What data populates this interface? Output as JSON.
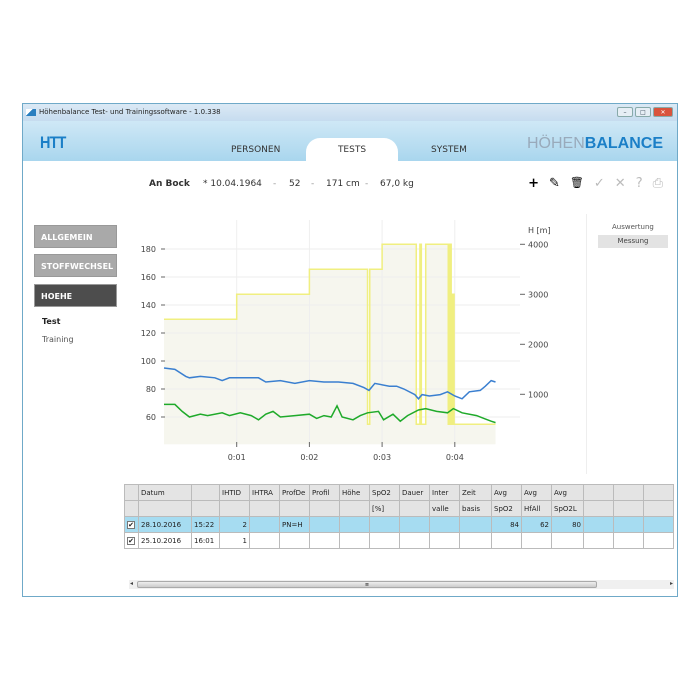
{
  "window": {
    "title": "Höhenbalance Test- und Trainingssoftware - 1.0.338",
    "min": "–",
    "max": "□",
    "close": "✕"
  },
  "header": {
    "logo": "HTT",
    "tabs": [
      "PERSONEN",
      "TESTS",
      "SYSTEM"
    ],
    "active_tab": "TESTS",
    "brand_light": "HÖHEN",
    "brand_bold": "BALANCE"
  },
  "person": {
    "name": "An Bock",
    "birth": "* 10.04.1964",
    "age": "52",
    "height": "171 cm",
    "weight": "67,0 kg",
    "sep": "-"
  },
  "toolbar": {
    "add": "+",
    "edit": "✎",
    "delete": "🗑",
    "confirm": "✓",
    "cancel": "✕",
    "help": "?",
    "print": "⎙"
  },
  "sidebar": {
    "items": [
      "ALLGEMEIN",
      "STOFFWECHSEL",
      "HOEHE"
    ],
    "active": "HOEHE",
    "sub": [
      "Test",
      "Training"
    ]
  },
  "right_panel": {
    "label": "Auswertung",
    "button": "Messung"
  },
  "chart_data": {
    "type": "line",
    "y_left": {
      "ticks": [
        60,
        80,
        100,
        120,
        140,
        160,
        180
      ],
      "range": [
        45,
        200
      ]
    },
    "y_right": {
      "label": "H [m]",
      "ticks": [
        1000,
        2000,
        3000,
        4000
      ],
      "range": [
        0,
        4500
      ]
    },
    "x": {
      "tick_labels": [
        "0:01",
        "0:02",
        "0:03",
        "0:04"
      ],
      "ticks": [
        1,
        2,
        3,
        4
      ],
      "range": [
        0,
        4.9
      ]
    },
    "grid": true,
    "series": [
      {
        "axis": "right",
        "color": "#f0ef80",
        "points": [
          [
            0,
            2500
          ],
          [
            1,
            2500
          ],
          [
            1,
            3000
          ],
          [
            2,
            3000
          ],
          [
            2,
            3500
          ],
          [
            2.8,
            3500
          ],
          [
            2.8,
            400
          ],
          [
            2.83,
            400
          ],
          [
            2.83,
            3500
          ],
          [
            3,
            3500
          ],
          [
            3,
            4000
          ],
          [
            3.47,
            4000
          ],
          [
            3.47,
            400
          ],
          [
            3.52,
            400
          ],
          [
            3.52,
            4000
          ],
          [
            3.54,
            4000
          ],
          [
            3.54,
            400
          ],
          [
            3.6,
            400
          ],
          [
            3.6,
            4000
          ],
          [
            3.91,
            4000
          ],
          [
            3.91,
            400
          ],
          [
            3.93,
            400
          ],
          [
            3.93,
            4000
          ],
          [
            3.95,
            4000
          ],
          [
            3.95,
            400
          ],
          [
            3.97,
            400
          ],
          [
            3.97,
            3000
          ],
          [
            3.99,
            3000
          ],
          [
            3.99,
            400
          ],
          [
            4.56,
            400
          ]
        ]
      },
      {
        "axis": "left",
        "color": "#3a7fd0",
        "points": [
          [
            0,
            95
          ],
          [
            0.15,
            94
          ],
          [
            0.3,
            89
          ],
          [
            0.35,
            88
          ],
          [
            0.5,
            89
          ],
          [
            0.7,
            88
          ],
          [
            0.8,
            86
          ],
          [
            0.9,
            88
          ],
          [
            1.1,
            88
          ],
          [
            1.3,
            88
          ],
          [
            1.4,
            85
          ],
          [
            1.6,
            86
          ],
          [
            1.8,
            84
          ],
          [
            2,
            86
          ],
          [
            2.2,
            85
          ],
          [
            2.4,
            85
          ],
          [
            2.6,
            84
          ],
          [
            2.75,
            81
          ],
          [
            2.82,
            79
          ],
          [
            2.9,
            84
          ],
          [
            3.1,
            82
          ],
          [
            3.2,
            82
          ],
          [
            3.3,
            80
          ],
          [
            3.45,
            76
          ],
          [
            3.5,
            73
          ],
          [
            3.55,
            76
          ],
          [
            3.65,
            75
          ],
          [
            3.8,
            76
          ],
          [
            3.9,
            78
          ],
          [
            4,
            75
          ],
          [
            4.1,
            73
          ],
          [
            4.2,
            78
          ],
          [
            4.35,
            79
          ],
          [
            4.42,
            82
          ],
          [
            4.5,
            86
          ],
          [
            4.56,
            85
          ]
        ]
      },
      {
        "axis": "left",
        "color": "#1faa2a",
        "points": [
          [
            0,
            69
          ],
          [
            0.15,
            69
          ],
          [
            0.25,
            64
          ],
          [
            0.35,
            60
          ],
          [
            0.5,
            62
          ],
          [
            0.6,
            61
          ],
          [
            0.8,
            63
          ],
          [
            0.9,
            61
          ],
          [
            1.05,
            63
          ],
          [
            1.2,
            61
          ],
          [
            1.3,
            58
          ],
          [
            1.4,
            62
          ],
          [
            1.5,
            64
          ],
          [
            1.6,
            60
          ],
          [
            1.8,
            61
          ],
          [
            2,
            62
          ],
          [
            2.1,
            59
          ],
          [
            2.2,
            61
          ],
          [
            2.3,
            60
          ],
          [
            2.38,
            68
          ],
          [
            2.45,
            60
          ],
          [
            2.6,
            58
          ],
          [
            2.7,
            61
          ],
          [
            2.8,
            63
          ],
          [
            2.95,
            64
          ],
          [
            3.02,
            58
          ],
          [
            3.15,
            62
          ],
          [
            3.25,
            57
          ],
          [
            3.35,
            61
          ],
          [
            3.5,
            65
          ],
          [
            3.6,
            66
          ],
          [
            3.75,
            64
          ],
          [
            3.9,
            63
          ],
          [
            3.98,
            66
          ],
          [
            4.1,
            63
          ],
          [
            4.3,
            61
          ],
          [
            4.4,
            59
          ],
          [
            4.5,
            57
          ],
          [
            4.56,
            56
          ]
        ]
      }
    ]
  },
  "table": {
    "header1": [
      "Datum",
      "",
      "IHTID",
      "IHTRA",
      "ProfDe",
      "Profil",
      "Höhe",
      "SpO2",
      "Dauer",
      "Inter",
      "Zeit",
      "Avg",
      "Avg",
      "Avg",
      "",
      "",
      ""
    ],
    "header2": [
      "",
      "",
      "",
      "",
      "",
      "",
      "",
      "[%]",
      "",
      "valle",
      "basis",
      "SpO2",
      "HfAll",
      "SpO2L",
      "",
      "",
      ""
    ],
    "rows": [
      {
        "checked": "✔",
        "cells": [
          "28.10.2016",
          "15:22",
          "2",
          "",
          "PN=H",
          "",
          "",
          "",
          "",
          "",
          "",
          "84",
          "62",
          "80",
          "",
          "",
          ""
        ]
      },
      {
        "checked": "✔",
        "cells": [
          "25.10.2016",
          "16:01",
          "1",
          "",
          "",
          "",
          "",
          "",
          "",
          "",
          "",
          "",
          "",
          "",
          "",
          "",
          ""
        ]
      }
    ]
  },
  "scrollbar": {
    "grip": "≡",
    "left": "◂",
    "right": "▸"
  }
}
